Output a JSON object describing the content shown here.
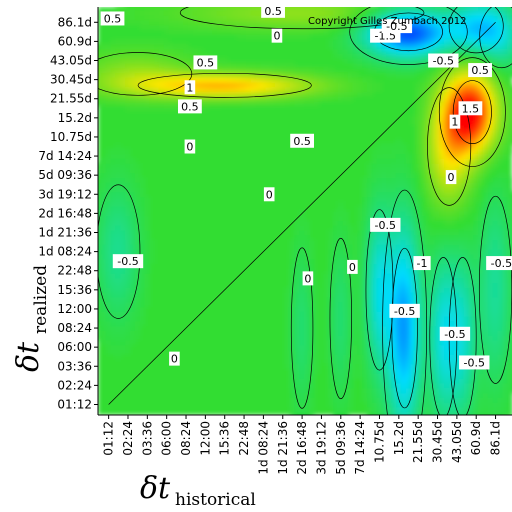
{
  "chart_data": {
    "type": "heatmap",
    "copyright": "Copyright Gilles Zumbach 2012",
    "xlabel": {
      "symbol": "δt",
      "subscript": "historical"
    },
    "ylabel": {
      "symbol": "δt",
      "subscript": "realized"
    },
    "ticks": [
      "01:12",
      "02:24",
      "03:36",
      "06:00",
      "08:24",
      "12:00",
      "15:36",
      "22:48",
      "1d 08:24",
      "1d 21:36",
      "2d 16:48",
      "3d 19:12",
      "5d 09:36",
      "7d 14:24",
      "10.75d",
      "15.2d",
      "21.55d",
      "30.45d",
      "43.05d",
      "60.9d",
      "86.1d"
    ],
    "color_scale": {
      "min": -2.0,
      "max": 2.0,
      "low_color": "#0000ff",
      "zero_color": "#33dd33",
      "high_color": "#ff0000"
    },
    "regions": [
      {
        "x": 15.5,
        "y": 19.5,
        "value": -1.7,
        "sx": 1.6,
        "sy": 0.9
      },
      {
        "x": 19.0,
        "y": 19.8,
        "value": -0.9,
        "sx": 1.0,
        "sy": 1.0
      },
      {
        "x": 20.3,
        "y": 19.3,
        "value": -0.6,
        "sx": 0.8,
        "sy": 1.2
      },
      {
        "x": 18.8,
        "y": 15.3,
        "value": 1.9,
        "sx": 0.9,
        "sy": 1.5
      },
      {
        "x": 17.6,
        "y": 13.5,
        "value": 0.9,
        "sx": 0.8,
        "sy": 2.2
      },
      {
        "x": 6.0,
        "y": 16.7,
        "value": 1.2,
        "sx": 3.2,
        "sy": 0.45
      },
      {
        "x": 1.5,
        "y": 17.3,
        "value": 0.45,
        "sx": 2.0,
        "sy": 0.8
      },
      {
        "x": 10.0,
        "y": 20.5,
        "value": 0.45,
        "sx": 4.5,
        "sy": 0.6
      },
      {
        "x": 15.3,
        "y": 4.0,
        "value": -1.3,
        "sx": 0.6,
        "sy": 3.8
      },
      {
        "x": 14.0,
        "y": 6.0,
        "value": -0.8,
        "sx": 0.5,
        "sy": 3.0
      },
      {
        "x": 17.3,
        "y": 3.5,
        "value": -0.8,
        "sx": 0.5,
        "sy": 3.0
      },
      {
        "x": 18.3,
        "y": 3.5,
        "value": -0.7,
        "sx": 0.5,
        "sy": 3.0
      },
      {
        "x": 20.0,
        "y": 6.0,
        "value": -0.5,
        "sx": 0.6,
        "sy": 3.5
      },
      {
        "x": 0.5,
        "y": 8.0,
        "value": -0.45,
        "sx": 0.8,
        "sy": 2.5
      },
      {
        "x": 10.0,
        "y": 4.0,
        "value": -0.3,
        "sx": 0.4,
        "sy": 3.0
      },
      {
        "x": 12.0,
        "y": 4.5,
        "value": -0.3,
        "sx": 0.4,
        "sy": 3.0
      }
    ],
    "contour_labels": [
      {
        "text": "0.5",
        "x": 0.2,
        "y": 20.2
      },
      {
        "text": "0.5",
        "x": 8.5,
        "y": 20.6
      },
      {
        "text": "0",
        "x": 8.7,
        "y": 19.3
      },
      {
        "text": "-1.5",
        "x": 14.3,
        "y": 19.3
      },
      {
        "text": "-0.5",
        "x": 14.9,
        "y": 19.8
      },
      {
        "text": "-0.5",
        "x": 17.3,
        "y": 18.0
      },
      {
        "text": "0.5",
        "x": 5.0,
        "y": 17.9
      },
      {
        "text": "1",
        "x": 4.2,
        "y": 16.6
      },
      {
        "text": "0.5",
        "x": 4.2,
        "y": 15.6
      },
      {
        "text": "0.5",
        "x": 19.2,
        "y": 17.5
      },
      {
        "text": "1.5",
        "x": 18.7,
        "y": 15.5
      },
      {
        "text": "1",
        "x": 17.9,
        "y": 14.8
      },
      {
        "text": "0",
        "x": 4.2,
        "y": 13.5
      },
      {
        "text": "0.5",
        "x": 10.0,
        "y": 13.8
      },
      {
        "text": "0",
        "x": 17.7,
        "y": 11.9
      },
      {
        "text": "0",
        "x": 8.3,
        "y": 11.0
      },
      {
        "text": "-0.5",
        "x": 14.3,
        "y": 9.4
      },
      {
        "text": "-0.5",
        "x": 1.0,
        "y": 7.5
      },
      {
        "text": "-1",
        "x": 16.2,
        "y": 7.4
      },
      {
        "text": "-0.5",
        "x": 20.3,
        "y": 7.4
      },
      {
        "text": "0",
        "x": 12.6,
        "y": 7.2
      },
      {
        "text": "0",
        "x": 10.3,
        "y": 6.6
      },
      {
        "text": "-0.5",
        "x": 15.3,
        "y": 4.9
      },
      {
        "text": "-0.5",
        "x": 17.9,
        "y": 3.7
      },
      {
        "text": "0",
        "x": 3.4,
        "y": 2.4
      },
      {
        "text": "-0.5",
        "x": 18.9,
        "y": 2.2
      }
    ]
  }
}
